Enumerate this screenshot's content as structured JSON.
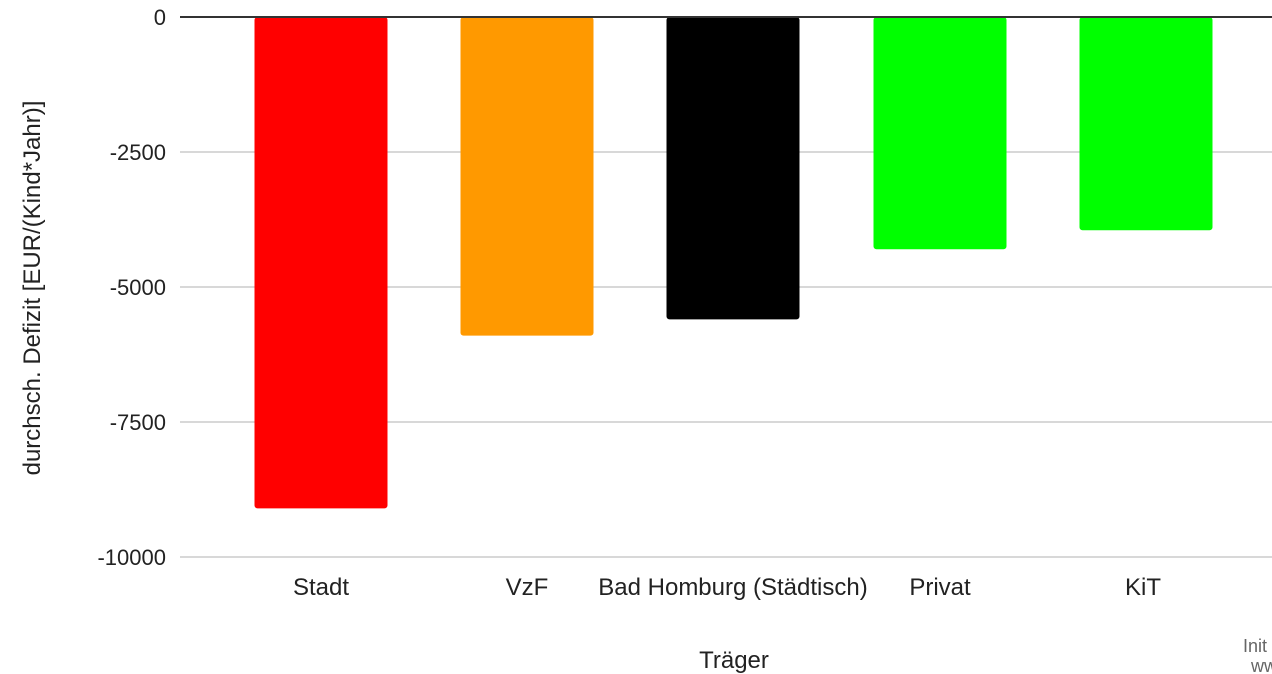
{
  "chart_data": {
    "type": "bar",
    "categories": [
      "Stadt",
      "VzF",
      "Bad Homburg (Städtisch)",
      "Privat",
      "KiT"
    ],
    "values": [
      -9100,
      -5900,
      -5600,
      -4300,
      -3950
    ],
    "colors": [
      "#ff0000",
      "#ff9900",
      "#000000",
      "#00ff00",
      "#00ff00"
    ],
    "title": "",
    "xlabel": "Träger",
    "ylabel": "durchsch. Defizit [EUR/(Kind*Jahr)]",
    "ylim": [
      -10000,
      0
    ],
    "yticks": [
      0,
      -2500,
      -5000,
      -7500,
      -10000
    ],
    "grid": true,
    "legend": "none"
  },
  "watermark": {
    "line1": "Init",
    "line2": "ww"
  }
}
